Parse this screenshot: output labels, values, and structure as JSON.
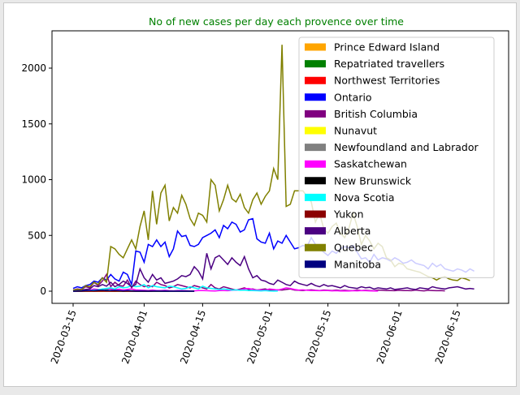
{
  "chart_data": {
    "type": "line",
    "title": "No of new cases per day each provence over time",
    "title_color": "#008000",
    "xlabel": "",
    "ylabel": "",
    "ylim": [
      -100,
      2300
    ],
    "y_ticks": [
      0,
      500,
      1000,
      1500,
      2000
    ],
    "x_ticks": [
      "2020-03-15",
      "2020-04-01",
      "2020-04-15",
      "2020-05-01",
      "2020-05-15",
      "2020-06-01",
      "2020-06-15"
    ],
    "x_range": [
      "2020-03-15",
      "2020-06-21"
    ],
    "grid": false,
    "legend_position": "upper right",
    "series": [
      {
        "name": "Prince Edward Island",
        "color": "#ffa500",
        "start": "2020-03-15",
        "values": [
          0,
          1,
          2,
          0,
          1,
          3,
          2,
          1,
          0,
          2,
          1,
          0,
          1,
          0,
          0,
          0,
          1,
          0,
          0,
          0
        ]
      },
      {
        "name": "Repatriated travellers",
        "color": "#008000",
        "start": "2020-03-15",
        "values": [
          0,
          0,
          0,
          0,
          0,
          0,
          0,
          0,
          13,
          0,
          0,
          0,
          0,
          0,
          0,
          0,
          0,
          0,
          0,
          0,
          0,
          0,
          0,
          0
        ]
      },
      {
        "name": "Northwest Territories",
        "color": "#ff0000",
        "start": "2020-03-15",
        "values": [
          0,
          0,
          0,
          0,
          0,
          0,
          1,
          0,
          0,
          0,
          1,
          0,
          0,
          0,
          0,
          0,
          0,
          0,
          0,
          0,
          0,
          0,
          0,
          0
        ]
      },
      {
        "name": "Ontario",
        "color": "#0000ff",
        "start": "2020-03-15",
        "values": [
          25,
          40,
          30,
          50,
          60,
          90,
          80,
          120,
          100,
          150,
          110,
          90,
          170,
          150,
          60,
          360,
          350,
          260,
          420,
          400,
          460,
          400,
          440,
          310,
          380,
          540,
          490,
          500,
          410,
          400,
          420,
          480,
          500,
          520,
          550,
          480,
          590,
          560,
          620,
          600,
          530,
          550,
          640,
          650,
          470,
          440,
          430,
          520,
          380,
          450,
          430,
          500,
          440,
          380,
          390,
          410,
          400,
          480,
          420,
          380,
          350,
          320,
          360,
          340,
          380,
          400,
          390,
          410,
          350,
          290,
          300,
          260,
          330,
          280,
          300,
          290,
          270,
          300,
          280,
          250,
          260,
          280,
          250,
          240,
          230,
          200,
          250,
          220,
          240,
          200,
          190,
          180,
          200,
          190,
          170,
          200,
          180
        ]
      },
      {
        "name": "British Columbia",
        "color": "#800080",
        "start": "2020-03-15",
        "values": [
          10,
          20,
          15,
          40,
          30,
          80,
          50,
          90,
          150,
          40,
          80,
          50,
          45,
          100,
          30,
          90,
          60,
          40,
          50,
          40,
          80,
          60,
          50,
          30,
          40,
          60,
          50,
          40,
          30,
          50,
          40,
          30,
          20,
          60,
          30,
          20,
          40,
          30,
          20,
          10,
          20,
          30,
          15,
          20,
          10,
          15,
          20,
          10,
          8,
          12,
          10,
          15,
          20,
          10,
          8,
          5,
          10,
          12,
          8,
          6,
          10,
          8,
          5,
          10,
          6,
          8,
          4,
          6,
          10,
          5,
          8,
          6,
          4,
          10,
          8,
          5,
          6,
          4,
          8,
          5,
          6,
          4,
          10,
          5,
          3,
          8,
          6,
          4,
          5,
          3
        ]
      },
      {
        "name": "Nunavut",
        "color": "#ffff00",
        "start": "2020-03-15",
        "values": [
          0,
          0,
          0,
          0,
          0,
          0,
          0,
          0,
          0,
          0,
          0,
          0,
          0,
          0,
          0,
          0,
          0,
          0,
          0,
          0,
          0,
          0,
          0,
          0,
          0,
          0,
          0,
          0,
          0,
          0
        ]
      },
      {
        "name": "Newfoundland and Labrador",
        "color": "#808080",
        "start": "2020-03-15",
        "values": [
          0,
          2,
          1,
          3,
          6,
          5,
          12,
          15,
          20,
          18,
          10,
          8,
          12,
          6,
          5,
          4,
          8,
          3,
          2,
          6,
          2,
          3,
          1,
          2,
          1,
          1,
          0,
          0,
          0,
          1
        ]
      },
      {
        "name": "Saskatchewan",
        "color": "#ff00ff",
        "start": "2020-03-15",
        "values": [
          2,
          5,
          4,
          6,
          8,
          20,
          15,
          10,
          25,
          20,
          12,
          18,
          10,
          15,
          20,
          12,
          10,
          8,
          5,
          10,
          6,
          5,
          8,
          4,
          3,
          5,
          6,
          4,
          2,
          3,
          5,
          6,
          4,
          3,
          2,
          5,
          6,
          4,
          8,
          10,
          12,
          20,
          25,
          15,
          10,
          12,
          8,
          20,
          15,
          10,
          20,
          30,
          25,
          15,
          10,
          12,
          8,
          6,
          5,
          4,
          6,
          5,
          3,
          4,
          2,
          3,
          2,
          4,
          3,
          5,
          4,
          3,
          2,
          1
        ]
      },
      {
        "name": "New Brunswick",
        "color": "#000000",
        "start": "2020-03-15",
        "values": [
          0,
          1,
          0,
          2,
          3,
          1,
          2,
          4,
          3,
          2,
          1,
          2,
          0,
          1,
          1,
          0,
          0,
          1,
          0,
          0,
          0,
          0,
          0,
          0,
          0,
          0,
          0,
          0,
          0,
          0
        ]
      },
      {
        "name": "Nova Scotia",
        "color": "#00ffff",
        "start": "2020-03-15",
        "values": [
          0,
          2,
          5,
          3,
          6,
          10,
          12,
          20,
          25,
          30,
          20,
          40,
          30,
          35,
          50,
          40,
          45,
          60,
          30,
          50,
          40,
          35,
          30,
          45,
          40,
          30,
          20,
          25,
          40,
          30,
          20,
          45,
          30,
          25,
          20,
          15,
          20,
          15,
          10,
          12,
          8,
          10,
          5,
          6,
          4,
          3,
          5,
          2,
          1,
          2
        ]
      },
      {
        "name": "Yukon",
        "color": "#8b0000",
        "start": "2020-03-15",
        "values": [
          0,
          0,
          0,
          0,
          0,
          1,
          0,
          0,
          1,
          0,
          0,
          2,
          0,
          0,
          0,
          0,
          0,
          0,
          0,
          0
        ]
      },
      {
        "name": "Alberta",
        "color": "#4b0082",
        "start": "2020-03-15",
        "values": [
          0,
          5,
          10,
          15,
          20,
          50,
          40,
          60,
          45,
          80,
          40,
          60,
          90,
          70,
          40,
          60,
          200,
          120,
          80,
          150,
          100,
          120,
          70,
          80,
          90,
          110,
          140,
          130,
          150,
          220,
          180,
          110,
          340,
          200,
          300,
          320,
          280,
          240,
          300,
          260,
          230,
          310,
          200,
          120,
          140,
          100,
          90,
          70,
          60,
          100,
          80,
          60,
          50,
          90,
          70,
          60,
          50,
          70,
          50,
          40,
          60,
          45,
          50,
          40,
          30,
          50,
          35,
          30,
          25,
          40,
          30,
          35,
          20,
          30,
          25,
          20,
          30,
          15,
          20,
          25,
          30,
          20,
          15,
          30,
          25,
          20,
          40,
          30,
          25,
          20,
          30,
          35,
          40,
          30,
          20,
          25,
          20
        ]
      },
      {
        "name": "Quebec",
        "color": "#808000",
        "start": "2020-03-15",
        "values": [
          10,
          15,
          12,
          50,
          40,
          80,
          60,
          120,
          80,
          400,
          380,
          330,
          300,
          380,
          460,
          380,
          580,
          720,
          460,
          900,
          600,
          880,
          950,
          630,
          750,
          700,
          860,
          780,
          650,
          590,
          700,
          680,
          620,
          1000,
          950,
          720,
          820,
          950,
          830,
          800,
          870,
          750,
          700,
          820,
          880,
          780,
          850,
          900,
          1100,
          1000,
          2210,
          760,
          780,
          900,
          900,
          900,
          850,
          800,
          620,
          700,
          560,
          520,
          580,
          610,
          520,
          480,
          560,
          700,
          580,
          420,
          500,
          450,
          380,
          430,
          400,
          300,
          280,
          220,
          250,
          240,
          200,
          190,
          180,
          170,
          150,
          130,
          120,
          100,
          120,
          130,
          110,
          100,
          95,
          120,
          110,
          95
        ]
      },
      {
        "name": "Manitoba",
        "color": "#000080",
        "start": "2020-03-15",
        "values": [
          0,
          2,
          3,
          4,
          6,
          5,
          8,
          10,
          6,
          5,
          8,
          4,
          3,
          6,
          2,
          1,
          2,
          1,
          0,
          1,
          2,
          0,
          1,
          0,
          0,
          0,
          1,
          0,
          0,
          0
        ]
      }
    ]
  }
}
